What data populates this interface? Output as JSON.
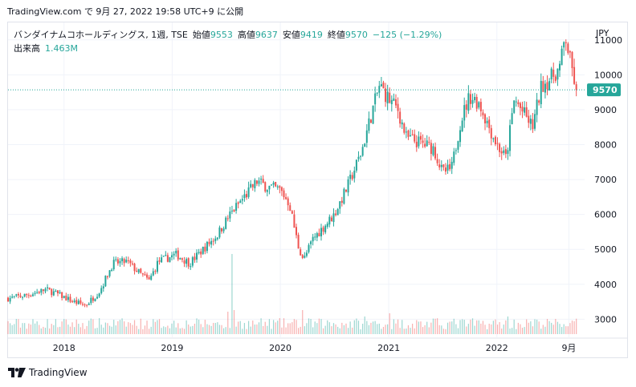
{
  "header": {
    "source": "TradingView.com で 9月 27, 2022 19:58 UTC+9 に公開"
  },
  "legend": {
    "symbol": "バンダイナムコホールディングス, 1週, TSE",
    "open_label": "始値",
    "open": "9553",
    "high_label": "高値",
    "high": "9637",
    "low_label": "安値",
    "low": "9419",
    "close_label": "終値",
    "close": "9570",
    "change": "−125 (−1.29%)",
    "volume_label": "出来高",
    "volume": "1.463M"
  },
  "currency": "JPY",
  "last_price_badge": "9570",
  "footer": {
    "brand": "TradingView"
  },
  "colors": {
    "up": "#26a69a",
    "down": "#ef5350",
    "grid": "#f0f3fa",
    "badge": "#26a69a"
  },
  "chart_data": {
    "type": "candlestick",
    "interval": "weekly",
    "y_axis": {
      "ticks": [
        3000,
        4000,
        5000,
        6000,
        7000,
        8000,
        9000,
        10000,
        11000
      ],
      "ylim": [
        2480,
        11500
      ],
      "position": "right"
    },
    "x_axis": {
      "ticks": [
        "2018",
        "2019",
        "2020",
        "2021",
        "2022",
        "9月"
      ],
      "tick_dates": [
        "2018-01-01",
        "2019-01-01",
        "2020-01-01",
        "2021-01-01",
        "2022-01-01",
        "2022-09-01"
      ],
      "xlim": [
        "2017-06-26",
        "2022-10-24"
      ]
    },
    "close_price_points": [
      [
        "2017-07-01",
        3600
      ],
      [
        "2017-09-01",
        3700
      ],
      [
        "2017-11-01",
        3850
      ],
      [
        "2017-12-15",
        3700
      ],
      [
        "2018-02-01",
        3500
      ],
      [
        "2018-03-15",
        3400
      ],
      [
        "2018-05-01",
        3800
      ],
      [
        "2018-06-15",
        4600
      ],
      [
        "2018-08-01",
        4650
      ],
      [
        "2018-09-15",
        4300
      ],
      [
        "2018-10-15",
        4100
      ],
      [
        "2018-11-15",
        4650
      ],
      [
        "2019-01-15",
        4850
      ],
      [
        "2019-03-01",
        4600
      ],
      [
        "2019-04-15",
        5000
      ],
      [
        "2019-06-01",
        5400
      ],
      [
        "2019-07-15",
        6000
      ],
      [
        "2019-09-01",
        6500
      ],
      [
        "2019-10-15",
        6950
      ],
      [
        "2019-11-15",
        6800
      ],
      [
        "2020-01-01",
        6700
      ],
      [
        "2020-02-01",
        6300
      ],
      [
        "2020-03-01",
        5100
      ],
      [
        "2020-03-20",
        4700
      ],
      [
        "2020-04-20",
        5300
      ],
      [
        "2020-06-01",
        5700
      ],
      [
        "2020-07-01",
        6000
      ],
      [
        "2020-08-15",
        6800
      ],
      [
        "2020-10-01",
        7800
      ],
      [
        "2020-11-01",
        8800
      ],
      [
        "2020-12-01",
        9700
      ],
      [
        "2021-01-01",
        9300
      ],
      [
        "2021-02-01",
        9000
      ],
      [
        "2021-03-01",
        8200
      ],
      [
        "2021-04-01",
        8100
      ],
      [
        "2021-05-01",
        8000
      ],
      [
        "2021-06-01",
        7900
      ],
      [
        "2021-07-01",
        7200
      ],
      [
        "2021-08-01",
        7300
      ],
      [
        "2021-09-01",
        8700
      ],
      [
        "2021-10-01",
        9400
      ],
      [
        "2021-11-01",
        9200
      ],
      [
        "2021-12-01",
        8600
      ],
      [
        "2022-01-01",
        8000
      ],
      [
        "2022-02-01",
        7600
      ],
      [
        "2022-03-01",
        9300
      ],
      [
        "2022-04-01",
        8900
      ],
      [
        "2022-05-01",
        8500
      ],
      [
        "2022-06-01",
        9700
      ],
      [
        "2022-07-01",
        9900
      ],
      [
        "2022-08-01",
        10200
      ],
      [
        "2022-08-20",
        11100
      ],
      [
        "2022-09-05",
        10400
      ],
      [
        "2022-09-26",
        9570
      ]
    ],
    "volume_spikes": [
      [
        "2019-07-22",
        1
      ],
      [
        "2019-07-08",
        0.28
      ],
      [
        "2019-07-29",
        0.3
      ],
      [
        "2020-03-16",
        0.3
      ],
      [
        "2020-10-12",
        0.22
      ],
      [
        "2021-01-04",
        0.26
      ],
      [
        "2022-02-07",
        0.22
      ]
    ],
    "last_price": 9570
  }
}
